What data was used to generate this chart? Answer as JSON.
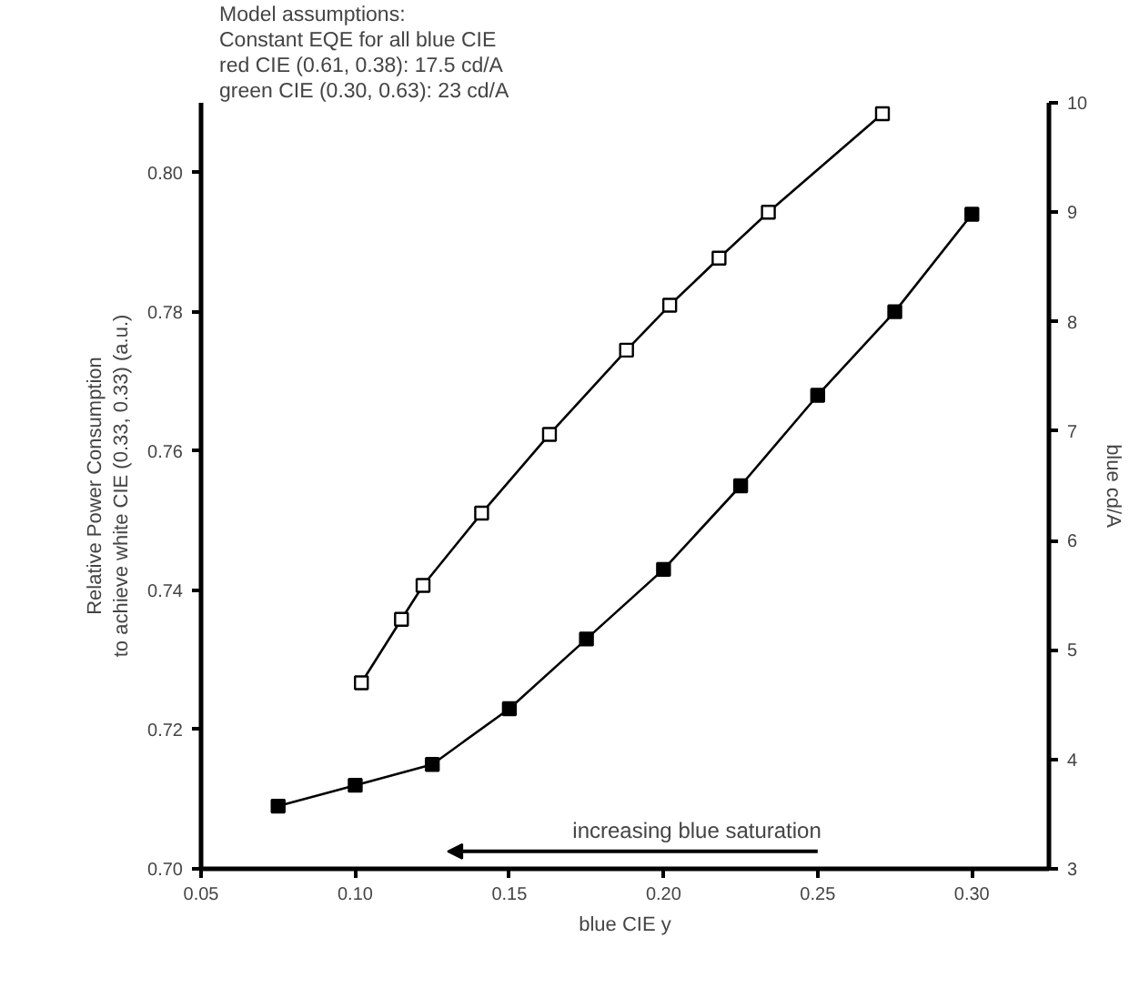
{
  "chart_data": {
    "type": "line",
    "xlabel": "blue CIE y",
    "ylabel": "Relative Power Consumption\nto achieve white CIE (0.33, 0.33) (a.u.)",
    "y2label": "blue cd/A",
    "xlim": [
      0.05,
      0.325
    ],
    "xticks": [
      0.05,
      {
        "value": 0.1,
        "label": "0.10"
      },
      0.15,
      {
        "value": 0.2,
        "label": "0.20"
      },
      0.25,
      {
        "value": 0.3,
        "label": "0.30"
      }
    ],
    "ylim": [
      0.7,
      0.81
    ],
    "yticks": [
      {
        "value": 0.7,
        "label": "0.70"
      },
      0.72,
      0.74,
      0.76,
      0.78,
      {
        "value": 0.8,
        "label": "0.80"
      }
    ],
    "y2lim": [
      3,
      10
    ],
    "y2ticks": [
      3,
      4,
      5,
      6,
      7,
      8,
      9,
      10
    ],
    "marker": "square",
    "grid": false,
    "line_style": "solid",
    "series": [
      {
        "color": "#000000",
        "x": [
          0.075,
          0.1,
          0.125,
          0.15,
          0.175,
          0.2,
          0.225,
          0.25,
          0.275,
          0.3
        ],
        "values": [
          0.709,
          0.712,
          0.715,
          0.723,
          0.733,
          0.743,
          0.755,
          0.768,
          0.78,
          0.794
        ]
      },
      {
        "color": "#000000",
        "axis": "y2",
        "x": [
          0.102,
          0.115,
          0.122,
          0.141,
          0.163,
          0.188,
          0.202,
          0.218,
          0.234,
          0.271
        ],
        "values": [
          4.7,
          5.28,
          5.59,
          6.25,
          6.97,
          7.74,
          8.15,
          8.58,
          9.0,
          9.9
        ]
      }
    ],
    "annotations": [
      "Model assumptions:",
      "Constant EQE for all blue CIE",
      "red CIE (0.61, 0.38): 17.5 cd/A",
      "green CIE (0.30, 0.63): 23 cd/A",
      "increasing blue saturation"
    ]
  }
}
